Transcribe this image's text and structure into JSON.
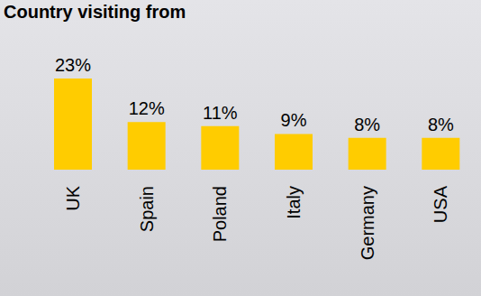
{
  "chart_data": {
    "type": "bar",
    "title": "Country visiting from",
    "categories": [
      "UK",
      "Spain",
      "Poland",
      "Italy",
      "Germany",
      "USA"
    ],
    "values": [
      23,
      12,
      11,
      9,
      8,
      8
    ],
    "value_labels": [
      "23%",
      "12%",
      "11%",
      "9%",
      "8%",
      "8%"
    ],
    "data_labels": true,
    "color": "#ffcc00",
    "ylim": [
      0,
      23
    ],
    "tick_labels": "x",
    "grid": false
  }
}
